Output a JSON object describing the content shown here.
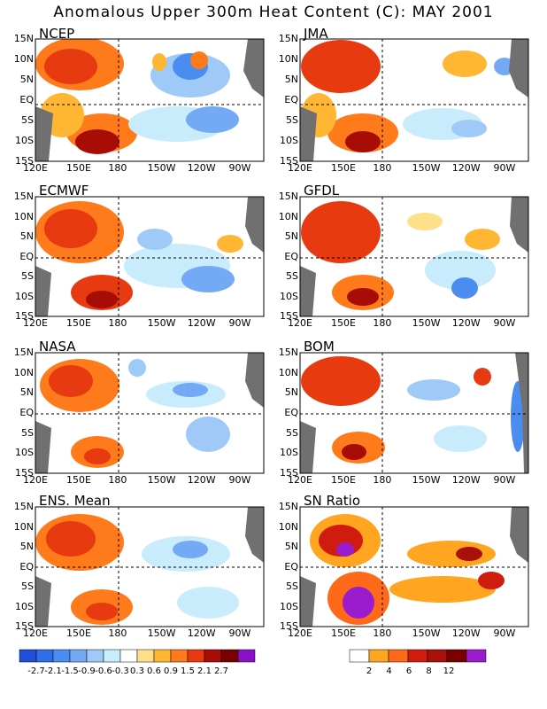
{
  "title": "Anomalous Upper 300m Heat Content (C): MAY 2001",
  "panels": [
    {
      "name": "NCEP"
    },
    {
      "name": "JMA"
    },
    {
      "name": "ECMWF"
    },
    {
      "name": "GFDL"
    },
    {
      "name": "NASA"
    },
    {
      "name": "BOM"
    },
    {
      "name": "ENS. Mean"
    },
    {
      "name": "SN Ratio"
    }
  ],
  "lat_labels": [
    "15N",
    "10N",
    "5N",
    "EQ",
    "5S",
    "10S",
    "15S"
  ],
  "lon_labels": [
    "120E",
    "150E",
    "180",
    "150W",
    "120W",
    "90W"
  ],
  "colorbar_anomaly": {
    "labels": [
      "-2.7",
      "-2.1",
      "-1.5",
      "-0.9",
      "-0.6",
      "-0.3",
      "0.3",
      "0.6",
      "0.9",
      "1.5",
      "2.1",
      "2.7"
    ],
    "colors": [
      "#1f4fd8",
      "#2f6ee8",
      "#4a8cf0",
      "#74aaf5",
      "#9fcaf8",
      "#c8ecfb",
      "#ffffff",
      "#ffe08a",
      "#ffb733",
      "#ff7a1a",
      "#e83a10",
      "#a80c06",
      "#7a0000",
      "#8a10c8"
    ]
  },
  "colorbar_sn": {
    "labels": [
      "2",
      "4",
      "6",
      "8",
      "12"
    ],
    "colors": [
      "#ffffff",
      "#ffa51f",
      "#ff6a1a",
      "#d01c0e",
      "#a8100a",
      "#7a0000",
      "#9a1ccc"
    ]
  },
  "colors": {
    "land": "#707070",
    "warm": "#e84a10",
    "cold": "#74aaf5"
  }
}
